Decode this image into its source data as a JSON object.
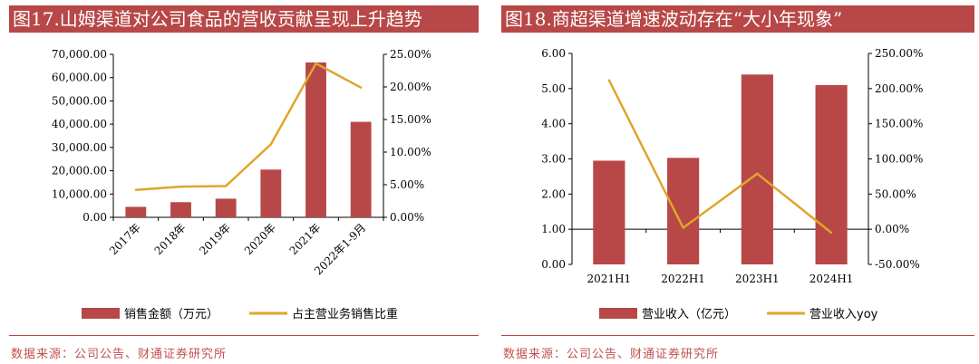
{
  "colors": {
    "title_bg": "#b84747",
    "bar": "#b84747",
    "line": "#e0a52a",
    "source_text": "#c0504d"
  },
  "chart_data": [
    {
      "type": "bar",
      "title": "图17.山姆渠道对公司食品的营收贡献呈现上升趋势",
      "categories": [
        "2017年",
        "2018年",
        "2019年",
        "2020年",
        "2021年",
        "2022年1-9月"
      ],
      "series": [
        {
          "name": "销售金额（万元）",
          "type": "bar",
          "axis": "left",
          "values": [
            4500,
            6500,
            8000,
            20500,
            66500,
            41000
          ]
        },
        {
          "name": "占主营业务销售比重",
          "type": "line",
          "axis": "right",
          "values": [
            0.042,
            0.047,
            0.048,
            0.112,
            0.236,
            0.199
          ]
        }
      ],
      "ylim": [
        0,
        70000
      ],
      "y_ticks": [
        "0.00",
        "10,000.00",
        "20,000.00",
        "30,000.00",
        "40,000.00",
        "50,000.00",
        "60,000.00",
        "70,000.00"
      ],
      "y2lim": [
        0,
        0.25
      ],
      "y2_ticks": [
        "0.00%",
        "5.00%",
        "10.00%",
        "15.00%",
        "20.00%",
        "25.00%"
      ],
      "legend_position": "bottom",
      "source": "数据来源：公司公告、财通证券研究所"
    },
    {
      "type": "bar",
      "title": "图18.商超渠道增速波动存在“大小年现象”",
      "categories": [
        "2021H1",
        "2022H1",
        "2023H1",
        "2024H1"
      ],
      "series": [
        {
          "name": "营业收入（亿元）",
          "type": "bar",
          "axis": "left",
          "values": [
            2.95,
            3.03,
            5.4,
            5.1
          ]
        },
        {
          "name": "营业收入yoy",
          "type": "line",
          "axis": "right",
          "values": [
            2.12,
            0.02,
            0.79,
            -0.05
          ]
        }
      ],
      "ylim": [
        0,
        6
      ],
      "y_ticks": [
        "0.00",
        "1.00",
        "2.00",
        "3.00",
        "4.00",
        "5.00",
        "6.00"
      ],
      "y2lim": [
        -0.5,
        2.5
      ],
      "y2_ticks": [
        "-50.00%",
        "0.00%",
        "50.00%",
        "100.00%",
        "150.00%",
        "200.00%",
        "250.00%"
      ],
      "legend_position": "bottom",
      "source": "数据来源：公司公告、财通证券研究所"
    }
  ]
}
